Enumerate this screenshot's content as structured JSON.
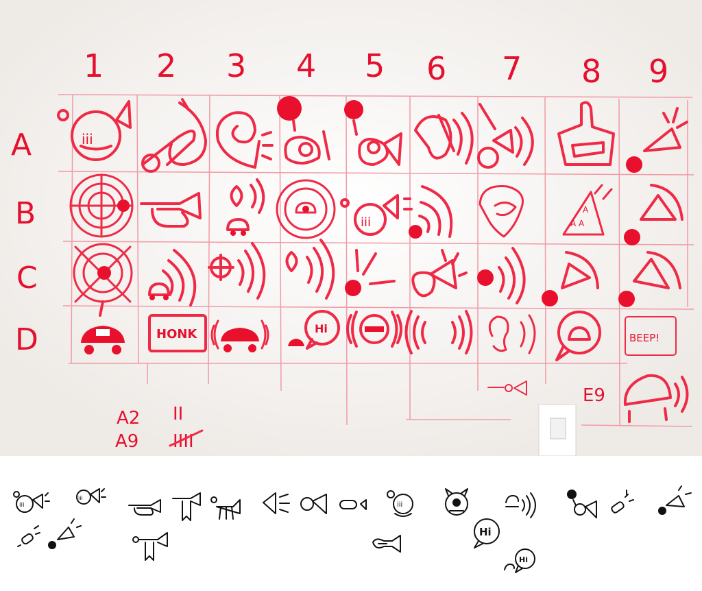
{
  "board": {
    "columns": [
      "1",
      "2",
      "3",
      "4",
      "5",
      "6",
      "7",
      "8",
      "9"
    ],
    "rows": [
      "A",
      "B",
      "C",
      "D"
    ],
    "extra_row_label": "E9",
    "cell_texts": {
      "d2": "HONK",
      "d4": "Hi",
      "d9": "BEEP!",
      "a1": "iii",
      "b5": "iii"
    },
    "tally": [
      {
        "label": "A2",
        "marks": "II"
      },
      {
        "label": "A9",
        "marks": "IIII"
      }
    ],
    "ink_color": "#e8102c"
  },
  "icon_strip": {
    "bubble_text_large": "Hi",
    "bubble_text_small": "Hi",
    "horn_text": "iii",
    "ink_color": "#111111"
  }
}
